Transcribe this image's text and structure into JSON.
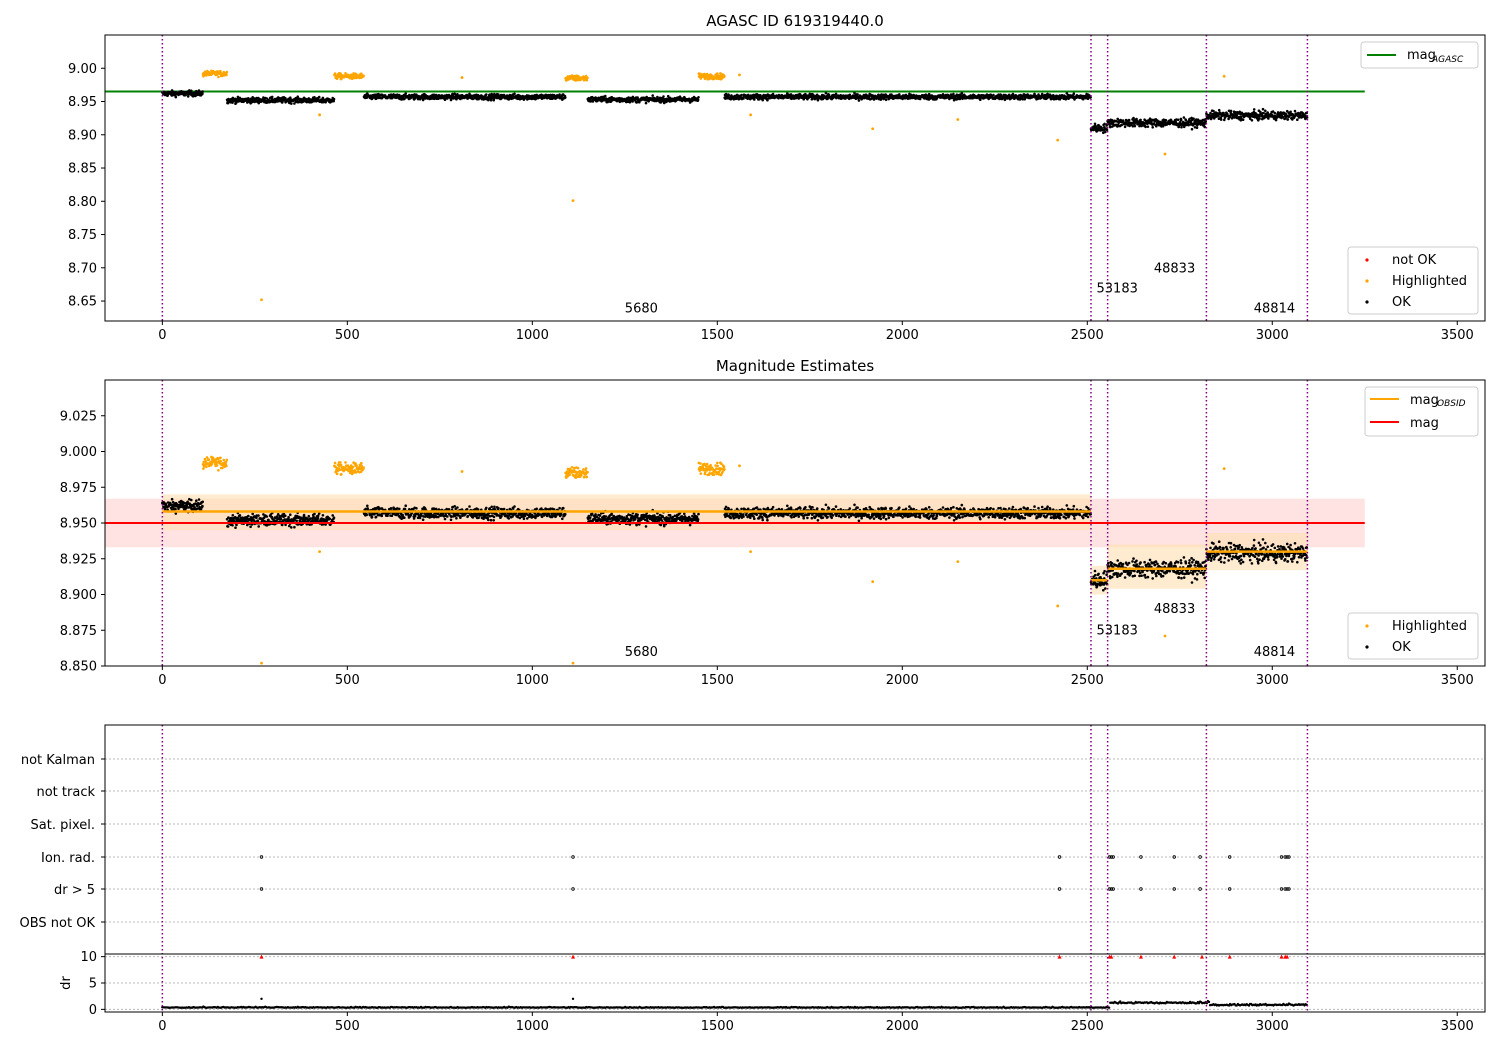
{
  "chart_data": [
    {
      "type": "scatter",
      "title": "AGASC ID 619319440.0",
      "xlim": [
        -155,
        3575
      ],
      "ylim": [
        8.62,
        9.05
      ],
      "xticks": [
        0,
        500,
        1000,
        1500,
        2000,
        2500,
        3000,
        3500
      ],
      "yticks": [
        9.0,
        8.95,
        8.9,
        8.85,
        8.8,
        8.75,
        8.7,
        8.65
      ],
      "reference_line": {
        "label": "mag_AGASC",
        "value": 8.965,
        "x_range": [
          -155,
          3250
        ],
        "color": "#008000"
      },
      "obsid_boundaries": [
        0,
        2510,
        2555,
        2822,
        3095
      ],
      "annotations": [
        {
          "text": "5680",
          "x": 1250,
          "y": 8.633
        },
        {
          "text": "53183",
          "x": 2525,
          "y": 8.663
        },
        {
          "text": "48833",
          "x": 2680,
          "y": 8.693
        },
        {
          "text": "48814",
          "x": 2950,
          "y": 8.633
        }
      ],
      "legend": {
        "position": "lower right",
        "entries": [
          {
            "label": "not OK",
            "color": "#ff0000"
          },
          {
            "label": "Highlighted",
            "color": "#ffa500"
          },
          {
            "label": "OK",
            "color": "#000000"
          }
        ]
      },
      "legend_top": {
        "position": "upper right",
        "label_main": "mag",
        "label_sub": "AGASC",
        "color": "#008000"
      },
      "segments": [
        {
          "x": [
            0,
            110
          ],
          "y": 8.962
        },
        {
          "x": [
            110,
            175
          ],
          "y": 8.992,
          "highlighted": true
        },
        {
          "x": [
            175,
            465
          ],
          "y": 8.952
        },
        {
          "x": [
            465,
            545
          ],
          "y": 8.988,
          "highlighted": true
        },
        {
          "x": [
            545,
            1090
          ],
          "y": 8.957
        },
        {
          "x": [
            1090,
            1150
          ],
          "y": 8.985,
          "highlighted": true
        },
        {
          "x": [
            1150,
            1450
          ],
          "y": 8.953
        },
        {
          "x": [
            1450,
            1520
          ],
          "y": 8.988,
          "highlighted": true
        },
        {
          "x": [
            1520,
            2510
          ],
          "y": 8.957
        },
        {
          "x": [
            2510,
            2555
          ],
          "y": 8.91
        },
        {
          "x": [
            2555,
            2822
          ],
          "y": 8.918
        },
        {
          "x": [
            2822,
            3095
          ],
          "y": 8.929
        }
      ],
      "outliers_highlighted": [
        [
          268,
          8.652
        ],
        [
          1110,
          8.801
        ],
        [
          425,
          8.93
        ],
        [
          1590,
          8.93
        ],
        [
          1920,
          8.909
        ],
        [
          2150,
          8.923
        ],
        [
          2420,
          8.892
        ],
        [
          2710,
          8.871
        ],
        [
          2870,
          8.988
        ],
        [
          810,
          8.986
        ],
        [
          1560,
          8.99
        ]
      ],
      "y_values_note": "dense per-sample magnitude estimates; approximated as running segments with scatter"
    },
    {
      "type": "scatter",
      "title": "Magnitude Estimates",
      "xlim": [
        -155,
        3575
      ],
      "ylim": [
        8.85,
        9.05
      ],
      "xticks": [
        0,
        500,
        1000,
        1500,
        2000,
        2500,
        3000,
        3500
      ],
      "yticks": [
        9.025,
        9.0,
        8.975,
        8.95,
        8.925,
        8.9,
        8.875,
        8.85
      ],
      "mag_line": {
        "label": "mag",
        "value": 8.95,
        "band": [
          8.933,
          8.967
        ],
        "x_range": [
          -155,
          3250
        ],
        "color": "#ff0000"
      },
      "mag_obsid": [
        {
          "x": [
            0,
            2510
          ],
          "value": 8.958,
          "band": [
            8.945,
            8.97
          ]
        },
        {
          "x": [
            2510,
            2555
          ],
          "value": 8.91,
          "band": [
            8.9,
            8.92
          ]
        },
        {
          "x": [
            2555,
            2822
          ],
          "value": 8.918,
          "band": [
            8.904,
            8.935
          ]
        },
        {
          "x": [
            2822,
            3095
          ],
          "value": 8.93,
          "band": [
            8.917,
            8.943
          ]
        }
      ],
      "obsid_boundaries": [
        0,
        2510,
        2555,
        2822,
        3095
      ],
      "annotations": [
        {
          "text": "5680",
          "x": 1250,
          "y": 8.857
        },
        {
          "text": "53183",
          "x": 2525,
          "y": 8.872
        },
        {
          "text": "48833",
          "x": 2680,
          "y": 8.887
        },
        {
          "text": "48814",
          "x": 2950,
          "y": 8.857
        }
      ],
      "legend_top": {
        "position": "upper right",
        "entries": [
          {
            "label_main": "mag",
            "label_sub": "OBSID",
            "color": "#ffa500"
          },
          {
            "label_main": "mag",
            "label_sub": "",
            "color": "#ff0000"
          }
        ]
      },
      "legend": {
        "position": "lower right",
        "entries": [
          {
            "label": "Highlighted",
            "color": "#ffa500"
          },
          {
            "label": "OK",
            "color": "#000000"
          }
        ]
      }
    },
    {
      "type": "scatter",
      "title": "",
      "xlim": [
        -155,
        3575
      ],
      "xticks": [
        0,
        500,
        1000,
        1500,
        2000,
        2500,
        3000,
        3500
      ],
      "flag_rows": [
        "not Kalman",
        "not track",
        "Sat. pixel.",
        "Ion. rad.",
        "dr > 5",
        "OBS not OK"
      ],
      "flag_points": {
        "Ion. rad.": [
          268,
          1110,
          2425,
          2560,
          2565,
          2570,
          2645,
          2735,
          2805,
          2885,
          3025,
          3035,
          3040,
          3045
        ],
        "dr > 5": [
          268,
          1110,
          2425,
          2560,
          2565,
          2570,
          2645,
          2735,
          2805,
          2885,
          3025,
          3035,
          3040,
          3045
        ]
      },
      "dr_panel": {
        "ylabel": "dr",
        "yticks": [
          10,
          5,
          0
        ],
        "ylim": [
          -0.5,
          10.5
        ],
        "clipped_markers_x": [
          268,
          1110,
          2425,
          2560,
          2565,
          2645,
          2735,
          2810,
          2885,
          3025,
          3035,
          3040
        ],
        "baseline": 0.3
      },
      "obsid_boundaries": [
        0,
        2510,
        2555,
        2822,
        3095
      ]
    }
  ]
}
